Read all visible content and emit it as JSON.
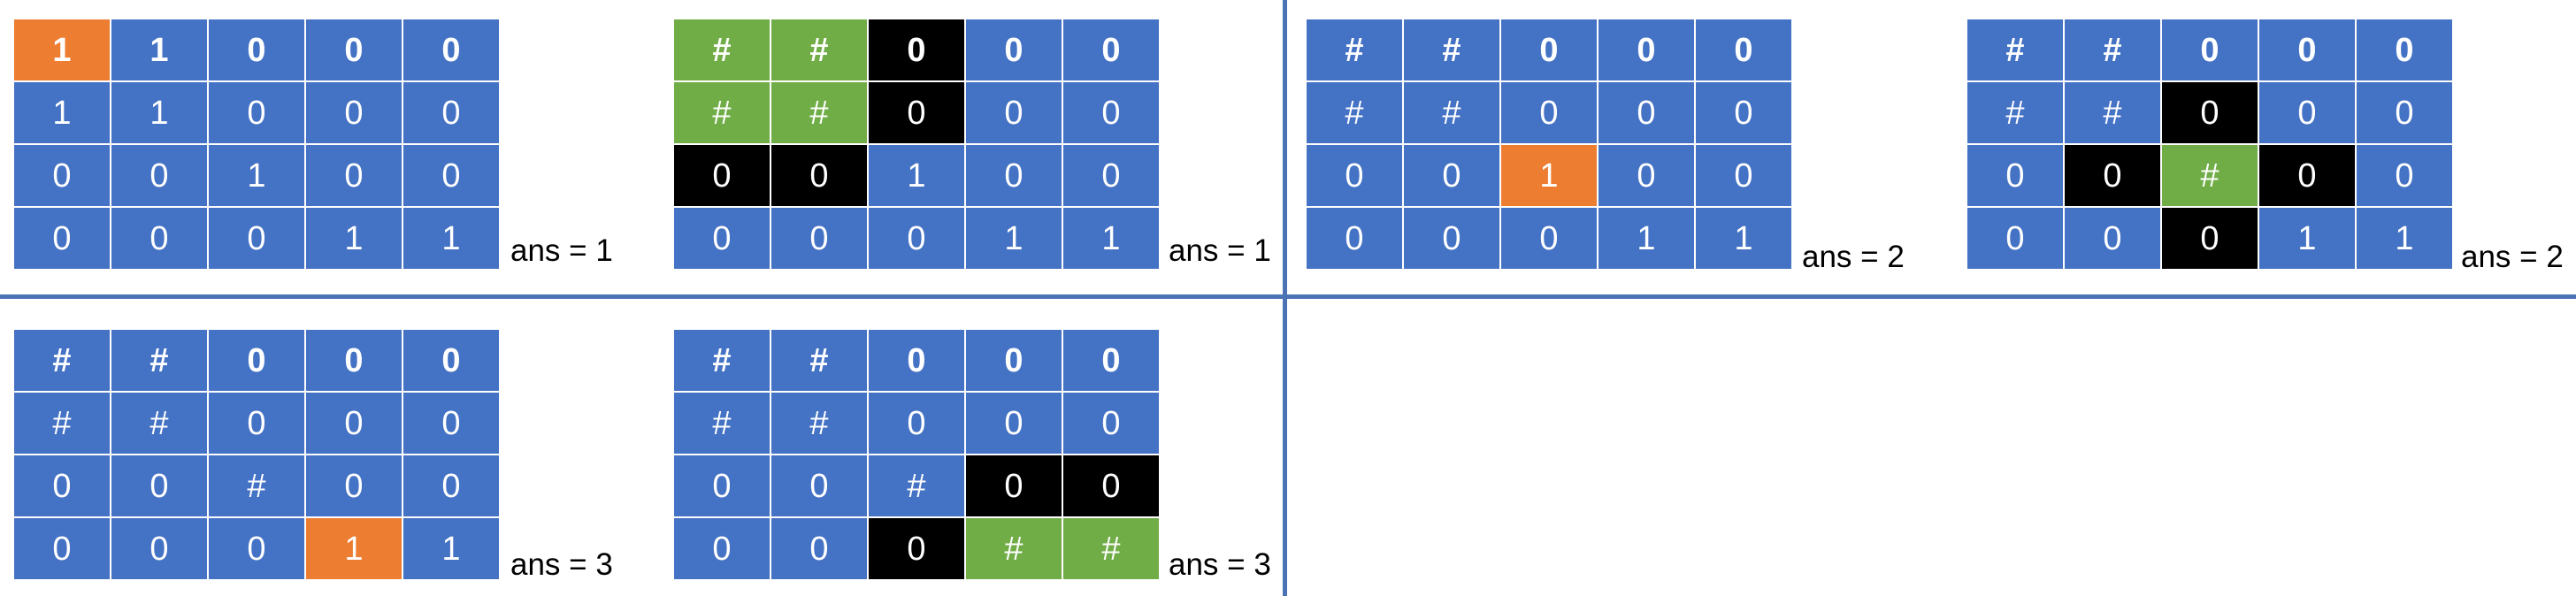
{
  "colors": {
    "blue": "#4472c4",
    "orange": "#ed7d31",
    "green": "#70ad47",
    "black": "#000000",
    "divider": "#4a72b5"
  },
  "panels": [
    {
      "ans": "ans = 1",
      "cells": [
        [
          [
            "1",
            "orange"
          ],
          [
            "1",
            "blue"
          ],
          [
            "0",
            "blue"
          ],
          [
            "0",
            "blue"
          ],
          [
            "0",
            "blue"
          ]
        ],
        [
          [
            "1",
            "blue"
          ],
          [
            "1",
            "blue"
          ],
          [
            "0",
            "blue"
          ],
          [
            "0",
            "blue"
          ],
          [
            "0",
            "blue"
          ]
        ],
        [
          [
            "0",
            "blue"
          ],
          [
            "0",
            "blue"
          ],
          [
            "1",
            "blue"
          ],
          [
            "0",
            "blue"
          ],
          [
            "0",
            "blue"
          ]
        ],
        [
          [
            "0",
            "blue"
          ],
          [
            "0",
            "blue"
          ],
          [
            "0",
            "blue"
          ],
          [
            "1",
            "blue"
          ],
          [
            "1",
            "blue"
          ]
        ]
      ]
    },
    {
      "ans": "ans = 1",
      "cells": [
        [
          [
            "#",
            "green"
          ],
          [
            "#",
            "green"
          ],
          [
            "0",
            "black"
          ],
          [
            "0",
            "blue"
          ],
          [
            "0",
            "blue"
          ]
        ],
        [
          [
            "#",
            "green"
          ],
          [
            "#",
            "green"
          ],
          [
            "0",
            "black"
          ],
          [
            "0",
            "blue"
          ],
          [
            "0",
            "blue"
          ]
        ],
        [
          [
            "0",
            "black"
          ],
          [
            "0",
            "black"
          ],
          [
            "1",
            "blue"
          ],
          [
            "0",
            "blue"
          ],
          [
            "0",
            "blue"
          ]
        ],
        [
          [
            "0",
            "blue"
          ],
          [
            "0",
            "blue"
          ],
          [
            "0",
            "blue"
          ],
          [
            "1",
            "blue"
          ],
          [
            "1",
            "blue"
          ]
        ]
      ]
    },
    {
      "ans": "ans = 2",
      "cells": [
        [
          [
            "#",
            "blue"
          ],
          [
            "#",
            "blue"
          ],
          [
            "0",
            "blue"
          ],
          [
            "0",
            "blue"
          ],
          [
            "0",
            "blue"
          ]
        ],
        [
          [
            "#",
            "blue"
          ],
          [
            "#",
            "blue"
          ],
          [
            "0",
            "blue"
          ],
          [
            "0",
            "blue"
          ],
          [
            "0",
            "blue"
          ]
        ],
        [
          [
            "0",
            "blue"
          ],
          [
            "0",
            "blue"
          ],
          [
            "1",
            "orange"
          ],
          [
            "0",
            "blue"
          ],
          [
            "0",
            "blue"
          ]
        ],
        [
          [
            "0",
            "blue"
          ],
          [
            "0",
            "blue"
          ],
          [
            "0",
            "blue"
          ],
          [
            "1",
            "blue"
          ],
          [
            "1",
            "blue"
          ]
        ]
      ]
    },
    {
      "ans": "ans = 2",
      "cells": [
        [
          [
            "#",
            "blue"
          ],
          [
            "#",
            "blue"
          ],
          [
            "0",
            "blue"
          ],
          [
            "0",
            "blue"
          ],
          [
            "0",
            "blue"
          ]
        ],
        [
          [
            "#",
            "blue"
          ],
          [
            "#",
            "blue"
          ],
          [
            "0",
            "black"
          ],
          [
            "0",
            "blue"
          ],
          [
            "0",
            "blue"
          ]
        ],
        [
          [
            "0",
            "blue"
          ],
          [
            "0",
            "black"
          ],
          [
            "#",
            "green"
          ],
          [
            "0",
            "black"
          ],
          [
            "0",
            "blue"
          ]
        ],
        [
          [
            "0",
            "blue"
          ],
          [
            "0",
            "blue"
          ],
          [
            "0",
            "black"
          ],
          [
            "1",
            "blue"
          ],
          [
            "1",
            "blue"
          ]
        ]
      ]
    },
    {
      "ans": "ans = 3",
      "cells": [
        [
          [
            "#",
            "blue"
          ],
          [
            "#",
            "blue"
          ],
          [
            "0",
            "blue"
          ],
          [
            "0",
            "blue"
          ],
          [
            "0",
            "blue"
          ]
        ],
        [
          [
            "#",
            "blue"
          ],
          [
            "#",
            "blue"
          ],
          [
            "0",
            "blue"
          ],
          [
            "0",
            "blue"
          ],
          [
            "0",
            "blue"
          ]
        ],
        [
          [
            "0",
            "blue"
          ],
          [
            "0",
            "blue"
          ],
          [
            "#",
            "blue"
          ],
          [
            "0",
            "blue"
          ],
          [
            "0",
            "blue"
          ]
        ],
        [
          [
            "0",
            "blue"
          ],
          [
            "0",
            "blue"
          ],
          [
            "0",
            "blue"
          ],
          [
            "1",
            "orange"
          ],
          [
            "1",
            "blue"
          ]
        ]
      ]
    },
    {
      "ans": "ans = 3",
      "cells": [
        [
          [
            "#",
            "blue"
          ],
          [
            "#",
            "blue"
          ],
          [
            "0",
            "blue"
          ],
          [
            "0",
            "blue"
          ],
          [
            "0",
            "blue"
          ]
        ],
        [
          [
            "#",
            "blue"
          ],
          [
            "#",
            "blue"
          ],
          [
            "0",
            "blue"
          ],
          [
            "0",
            "blue"
          ],
          [
            "0",
            "blue"
          ]
        ],
        [
          [
            "0",
            "blue"
          ],
          [
            "0",
            "blue"
          ],
          [
            "#",
            "blue"
          ],
          [
            "0",
            "black"
          ],
          [
            "0",
            "black"
          ]
        ],
        [
          [
            "0",
            "blue"
          ],
          [
            "0",
            "blue"
          ],
          [
            "0",
            "black"
          ],
          [
            "#",
            "green"
          ],
          [
            "#",
            "green"
          ]
        ]
      ]
    }
  ]
}
